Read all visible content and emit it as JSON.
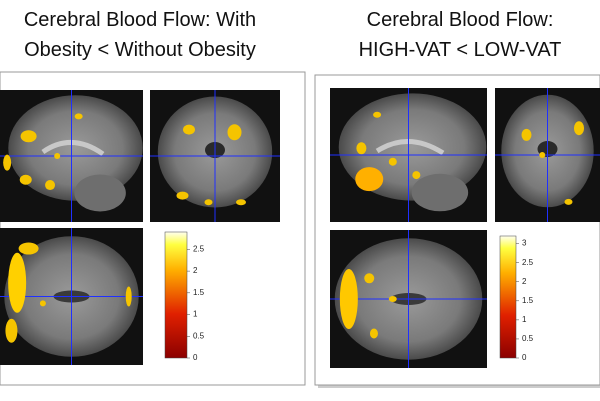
{
  "panels": [
    {
      "title_lines": [
        "Cerebral Blood Flow: With",
        "Obesity < Without Obesity"
      ],
      "colorbar": {
        "lim": [
          0,
          2.9
        ],
        "ticks": [
          0,
          0.5,
          1,
          1.5,
          2,
          2.5
        ]
      }
    },
    {
      "title_lines": [
        "Cerebral Blood Flow:",
        "HIGH-VAT < LOW-VAT"
      ],
      "colorbar": {
        "lim": [
          0,
          3.2
        ],
        "ticks": [
          0,
          0.5,
          1,
          1.5,
          2,
          2.5,
          3
        ]
      }
    }
  ]
}
